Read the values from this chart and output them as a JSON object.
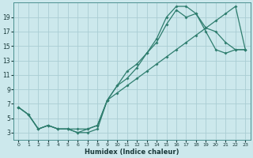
{
  "title": "",
  "xlabel": "Humidex (Indice chaleur)",
  "bg_color": "#cce8ec",
  "line_color": "#2e7d6e",
  "grid_color": "#aacdd4",
  "xlim": [
    -0.5,
    23.5
  ],
  "ylim": [
    2.0,
    21.0
  ],
  "xticks": [
    0,
    1,
    2,
    3,
    4,
    5,
    6,
    7,
    8,
    9,
    10,
    11,
    12,
    13,
    14,
    15,
    16,
    17,
    18,
    19,
    20,
    21,
    22,
    23
  ],
  "yticks": [
    3,
    5,
    7,
    9,
    11,
    13,
    15,
    17,
    19
  ],
  "line1_x": [
    0,
    1,
    2,
    3,
    4,
    5,
    6,
    7,
    8,
    9,
    10,
    11,
    12,
    13,
    14,
    15,
    16,
    17,
    18,
    19,
    20,
    21,
    22,
    23
  ],
  "line1_y": [
    6.5,
    5.5,
    3.5,
    4.0,
    3.5,
    3.5,
    3.0,
    3.0,
    3.5,
    7.5,
    9.5,
    11.5,
    12.5,
    14.0,
    16.0,
    19.0,
    20.5,
    20.5,
    19.5,
    17.0,
    14.5,
    14.0,
    14.5,
    14.5
  ],
  "line2_x": [
    0,
    1,
    2,
    3,
    4,
    5,
    6,
    7,
    8,
    9,
    10,
    11,
    12,
    13,
    14,
    15,
    16,
    17,
    18,
    19,
    20,
    21,
    22,
    23
  ],
  "line2_y": [
    6.5,
    5.5,
    3.5,
    4.0,
    3.5,
    3.5,
    3.0,
    3.5,
    4.0,
    7.5,
    9.5,
    10.5,
    12.0,
    14.0,
    15.5,
    18.0,
    20.0,
    19.0,
    19.5,
    17.5,
    17.0,
    15.5,
    14.5,
    14.5
  ],
  "line3_x": [
    0,
    1,
    2,
    3,
    4,
    5,
    6,
    7,
    8,
    9,
    10,
    11,
    12,
    13,
    14,
    15,
    16,
    17,
    18,
    19,
    20,
    21,
    22,
    23
  ],
  "line3_y": [
    6.5,
    5.5,
    3.5,
    4.0,
    3.5,
    3.5,
    3.5,
    3.5,
    4.0,
    7.5,
    8.5,
    9.5,
    10.5,
    11.5,
    12.5,
    13.5,
    14.5,
    15.5,
    16.5,
    17.5,
    18.5,
    19.5,
    20.5,
    14.5
  ]
}
